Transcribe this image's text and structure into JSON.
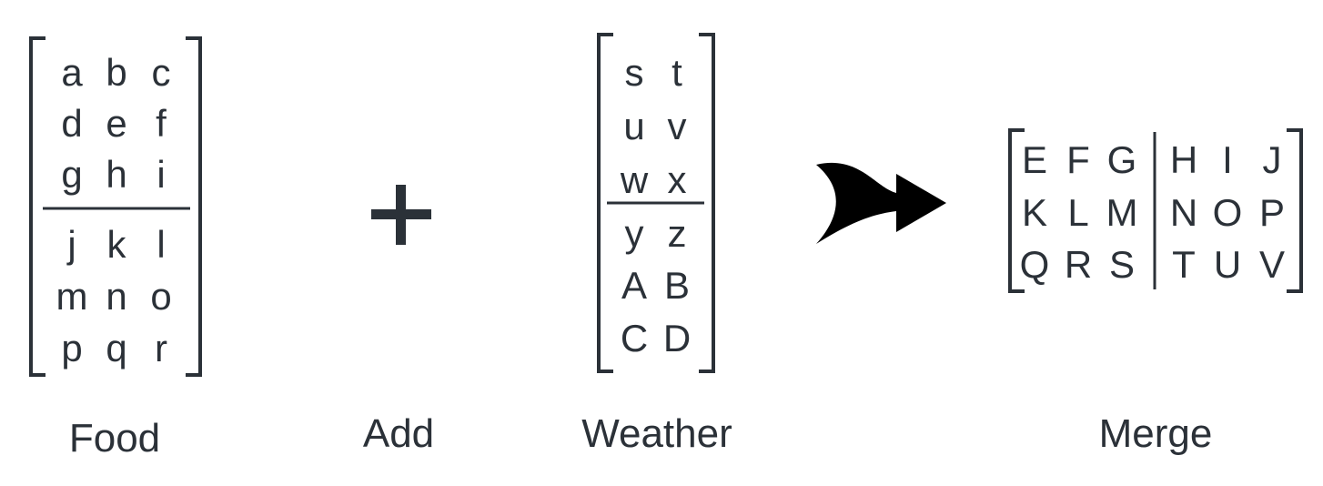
{
  "food": {
    "label": "Food",
    "top_rows": [
      [
        "a",
        "b",
        "c"
      ],
      [
        "d",
        "e",
        "f"
      ],
      [
        "g",
        "h",
        "i"
      ]
    ],
    "bottom_rows": [
      [
        "j",
        "k",
        "l"
      ],
      [
        "m",
        "n",
        "o"
      ],
      [
        "p",
        "q",
        "r"
      ]
    ]
  },
  "add": {
    "label": "Add",
    "symbol": "+"
  },
  "weather": {
    "label": "Weather",
    "top_rows": [
      [
        "s",
        "t"
      ],
      [
        "u",
        "v"
      ],
      [
        "w",
        "x"
      ]
    ],
    "bottom_rows": [
      [
        "y",
        "z"
      ],
      [
        "A",
        "B"
      ],
      [
        "C",
        "D"
      ]
    ]
  },
  "merge": {
    "label": "Merge",
    "left_rows": [
      [
        "E",
        "F",
        "G"
      ],
      [
        "K",
        "L",
        "M"
      ],
      [
        "Q",
        "R",
        "S"
      ]
    ],
    "right_rows": [
      [
        "H",
        "I",
        "J"
      ],
      [
        "N",
        "O",
        "P"
      ],
      [
        "T",
        "U",
        "V"
      ]
    ]
  },
  "colors": {
    "ink": "#2b3138",
    "arrow": "#000000",
    "background": "#ffffff"
  },
  "icons": {
    "merge_arrow": "merge-arrow-icon"
  }
}
